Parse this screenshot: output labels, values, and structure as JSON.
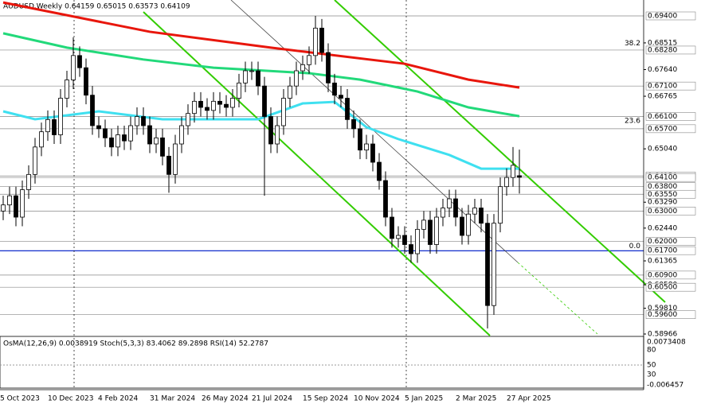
{
  "header": {
    "title": "AUDUSD,Weekly  0.64159 0.65015 0.63573 0.64109"
  },
  "chart_data": {
    "type": "candlestick",
    "ylim": [
      0.58966,
      0.694
    ],
    "open": [
      0.63,
      0.632,
      0.635,
      0.628,
      0.637,
      0.642,
      0.651,
      0.656,
      0.66,
      0.655,
      0.667,
      0.673,
      0.681,
      0.677,
      0.668,
      0.658,
      0.657,
      0.654,
      0.651,
      0.655,
      0.653,
      0.658,
      0.661,
      0.658,
      0.652,
      0.654,
      0.648,
      0.642,
      0.652,
      0.658,
      0.662,
      0.666,
      0.664,
      0.663,
      0.666,
      0.665,
      0.664,
      0.667,
      0.672,
      0.676,
      0.676,
      0.671,
      0.661,
      0.652,
      0.658,
      0.667,
      0.671,
      0.676,
      0.678,
      0.681,
      0.69,
      0.682,
      0.672,
      0.668,
      0.667,
      0.66,
      0.657,
      0.65,
      0.652,
      0.646,
      0.64,
      0.628,
      0.621,
      0.622,
      0.619,
      0.616,
      0.624,
      0.627,
      0.619,
      0.628,
      0.631,
      0.634,
      0.628,
      0.622,
      0.629,
      0.631,
      0.626,
      0.599,
      0.626,
      0.638,
      0.641,
      0.64159
    ],
    "high": [
      0.635,
      0.638,
      0.638,
      0.64,
      0.645,
      0.654,
      0.659,
      0.663,
      0.663,
      0.67,
      0.676,
      0.687,
      0.684,
      0.68,
      0.671,
      0.661,
      0.66,
      0.657,
      0.658,
      0.658,
      0.661,
      0.664,
      0.664,
      0.661,
      0.657,
      0.657,
      0.651,
      0.655,
      0.661,
      0.665,
      0.669,
      0.669,
      0.667,
      0.669,
      0.669,
      0.668,
      0.67,
      0.675,
      0.679,
      0.679,
      0.679,
      0.674,
      0.664,
      0.661,
      0.67,
      0.674,
      0.679,
      0.681,
      0.684,
      0.694,
      0.693,
      0.685,
      0.675,
      0.671,
      0.67,
      0.663,
      0.66,
      0.655,
      0.655,
      0.649,
      0.643,
      0.631,
      0.625,
      0.625,
      0.622,
      0.627,
      0.63,
      0.63,
      0.631,
      0.634,
      0.637,
      0.637,
      0.631,
      0.632,
      0.634,
      0.634,
      0.629,
      0.629,
      0.641,
      0.644,
      0.651,
      0.65015
    ],
    "low": [
      0.627,
      0.629,
      0.625,
      0.625,
      0.634,
      0.639,
      0.648,
      0.653,
      0.652,
      0.652,
      0.664,
      0.67,
      0.674,
      0.665,
      0.655,
      0.654,
      0.651,
      0.648,
      0.648,
      0.65,
      0.65,
      0.655,
      0.655,
      0.649,
      0.649,
      0.645,
      0.636,
      0.639,
      0.649,
      0.655,
      0.659,
      0.661,
      0.66,
      0.66,
      0.662,
      0.661,
      0.661,
      0.664,
      0.669,
      0.673,
      0.668,
      0.635,
      0.649,
      0.649,
      0.655,
      0.664,
      0.668,
      0.673,
      0.675,
      0.678,
      0.679,
      0.669,
      0.665,
      0.664,
      0.657,
      0.654,
      0.647,
      0.647,
      0.643,
      0.637,
      0.625,
      0.618,
      0.618,
      0.616,
      0.613,
      0.613,
      0.621,
      0.616,
      0.616,
      0.625,
      0.628,
      0.625,
      0.619,
      0.619,
      0.626,
      0.623,
      0.5915,
      0.596,
      0.623,
      0.635,
      0.638,
      0.63573
    ],
    "close": [
      0.632,
      0.635,
      0.628,
      0.637,
      0.642,
      0.651,
      0.656,
      0.66,
      0.655,
      0.667,
      0.673,
      0.681,
      0.677,
      0.668,
      0.658,
      0.657,
      0.654,
      0.651,
      0.655,
      0.653,
      0.658,
      0.661,
      0.658,
      0.652,
      0.654,
      0.648,
      0.642,
      0.652,
      0.658,
      0.662,
      0.666,
      0.664,
      0.663,
      0.666,
      0.665,
      0.664,
      0.667,
      0.672,
      0.676,
      0.676,
      0.671,
      0.661,
      0.652,
      0.658,
      0.667,
      0.671,
      0.676,
      0.678,
      0.681,
      0.69,
      0.682,
      0.672,
      0.668,
      0.667,
      0.66,
      0.657,
      0.65,
      0.652,
      0.646,
      0.64,
      0.628,
      0.621,
      0.622,
      0.619,
      0.616,
      0.624,
      0.627,
      0.619,
      0.628,
      0.631,
      0.634,
      0.628,
      0.622,
      0.629,
      0.631,
      0.626,
      0.599,
      0.626,
      0.638,
      0.641,
      0.645,
      0.64109
    ],
    "lines": [
      {
        "color": "#e8160c",
        "x": [
          0,
          23,
          42,
          63,
          73,
          81
        ],
        "values": [
          0.6984,
          0.6888,
          0.6836,
          0.6783,
          0.6731,
          0.6705
        ]
      },
      {
        "color": "#22d97a",
        "x": [
          0,
          10,
          22,
          33,
          48,
          56,
          65,
          73,
          81
        ],
        "values": [
          0.6883,
          0.6836,
          0.6797,
          0.677,
          0.6752,
          0.6731,
          0.6692,
          0.664,
          0.6611
        ]
      },
      {
        "color": "#3fe0f0",
        "x": [
          0,
          5,
          15,
          25,
          33,
          40,
          47,
          52,
          57,
          62,
          70,
          75,
          81
        ],
        "values": [
          0.6627,
          0.6601,
          0.6627,
          0.6601,
          0.6601,
          0.6601,
          0.6653,
          0.6658,
          0.6575,
          0.6536,
          0.6484,
          0.6439,
          0.6439
        ]
      }
    ],
    "yticks": [
      {
        "value": 0.68515,
        "label": "0.68515"
      },
      {
        "value": 0.6764,
        "label": "0.67640"
      },
      {
        "value": 0.66765,
        "label": "0.66765"
      },
      {
        "value": 0.6504,
        "label": "0.65040"
      },
      {
        "value": 0.6329,
        "label": "0.63290"
      },
      {
        "value": 0.6244,
        "label": "0.62440"
      },
      {
        "value": 0.61365,
        "label": "0.61365"
      },
      {
        "value": 0.6058,
        "label": "0.60580"
      },
      {
        "value": 0.5981,
        "label": "0.59810"
      },
      {
        "value": 0.58966,
        "label": "0.58966"
      }
    ],
    "levels": [
      {
        "value": 0.694,
        "label": "0.69400"
      },
      {
        "value": 0.6828,
        "label": "0.68280"
      },
      {
        "value": 0.671,
        "label": "0.67100"
      },
      {
        "value": 0.661,
        "label": "0.66100"
      },
      {
        "value": 0.657,
        "label": "0.65700"
      },
      {
        "value": 0.6415,
        "label": "0.64150"
      },
      {
        "value": 0.641,
        "label": "0.64100"
      },
      {
        "value": 0.638,
        "label": "0.63800"
      },
      {
        "value": 0.6355,
        "label": "0.63550"
      },
      {
        "value": 0.63,
        "label": "0.63000"
      },
      {
        "value": 0.62,
        "label": "0.62000"
      },
      {
        "value": 0.617,
        "label": "0.61700"
      },
      {
        "value": 0.609,
        "label": "0.60900"
      },
      {
        "value": 0.605,
        "label": "0.60500"
      },
      {
        "value": 0.596,
        "label": "0.59600"
      }
    ],
    "fibo": [
      {
        "value": 0.6845,
        "label": "38.2"
      },
      {
        "value": 0.659,
        "label": "23.6"
      },
      {
        "value": 0.618,
        "label": "0.0"
      }
    ]
  },
  "indicator": {
    "title": "OsMA(12,26,9) 0.0038919  Stoch(5,3,3) 83.4062 89.2898  RSI(14) 52.2787",
    "axis": [
      "0.0073408",
      "80",
      "50",
      "30",
      "-0.006457"
    ]
  },
  "dates": [
    "5 Oct 2023",
    "10 Dec 2023",
    "4 Feb 2024",
    "31 Mar 2024",
    "26 May 2024",
    "21 Jul 2024",
    "15 Sep 2024",
    "10 Nov 2024",
    "5 Jan 2025",
    "2 Mar 2025",
    "27 Apr 2025"
  ]
}
